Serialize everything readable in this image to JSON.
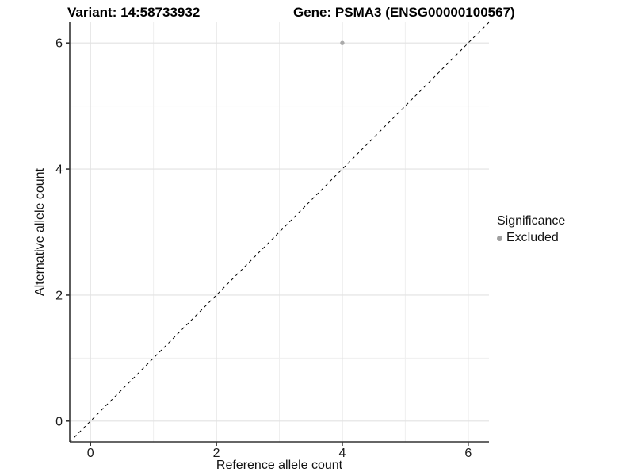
{
  "titles": {
    "variant": "Variant: 14:58733932",
    "gene": "Gene: PSMA3 (ENSG00000100567)"
  },
  "chart_data": {
    "type": "scatter",
    "xlabel": "Reference allele count",
    "ylabel": "Alternative allele count",
    "xlim": [
      -0.33,
      6.33
    ],
    "ylim": [
      -0.33,
      6.33
    ],
    "major_ticks": [
      0,
      2,
      4,
      6
    ],
    "minor_gridlines": [
      1,
      3,
      5
    ],
    "grid": "on",
    "identity_line": {
      "style": "dashed",
      "from": [
        -0.33,
        -0.33
      ],
      "to": [
        6.33,
        6.33
      ],
      "color": "#000000"
    },
    "points": [
      {
        "x": 4,
        "y": 6,
        "series": "Excluded",
        "color": "#aaaaaa"
      }
    ],
    "legend": {
      "title": "Significance",
      "position": "right",
      "items": [
        {
          "label": "Excluded",
          "color": "#a0a0a0"
        }
      ]
    }
  },
  "colors": {
    "grid_major": "#e2e2e2",
    "grid_minor": "#efefef",
    "axis": "#333333",
    "tick_text": "#1a1a1a",
    "point": "#aaaaaa"
  }
}
